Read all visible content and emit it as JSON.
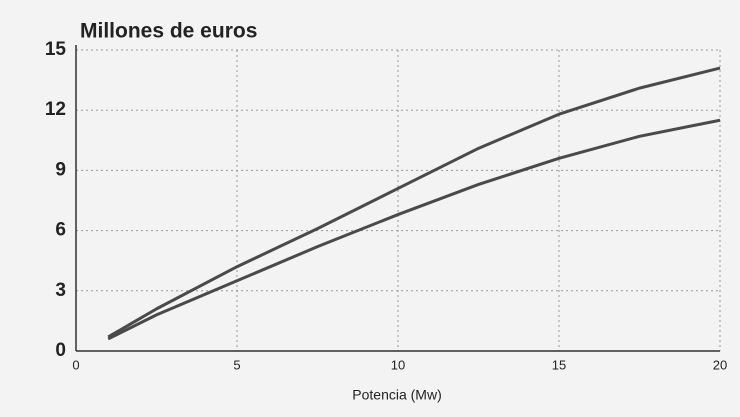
{
  "chart_data": {
    "type": "line",
    "title": "Millones de euros",
    "xlabel": "Potencia (Mw)",
    "x": [
      1,
      2.5,
      5,
      7.5,
      10,
      12.5,
      15,
      17.5,
      20
    ],
    "series": [
      {
        "color": "#4a4a4a",
        "values": [
          0.7,
          2.1,
          4.2,
          6.1,
          8.1,
          10.1,
          11.8,
          13.1,
          14.1
        ]
      },
      {
        "color": "#4a4a4a",
        "values": [
          0.6,
          1.8,
          3.5,
          5.2,
          6.8,
          8.3,
          9.6,
          10.7,
          11.5
        ]
      }
    ],
    "xlim": [
      0,
      20
    ],
    "xticks": [
      0,
      5,
      10,
      15,
      20
    ],
    "ylim": [
      0,
      15
    ],
    "yticks": [
      0,
      3,
      6,
      9,
      12,
      15
    ],
    "grid": true
  }
}
